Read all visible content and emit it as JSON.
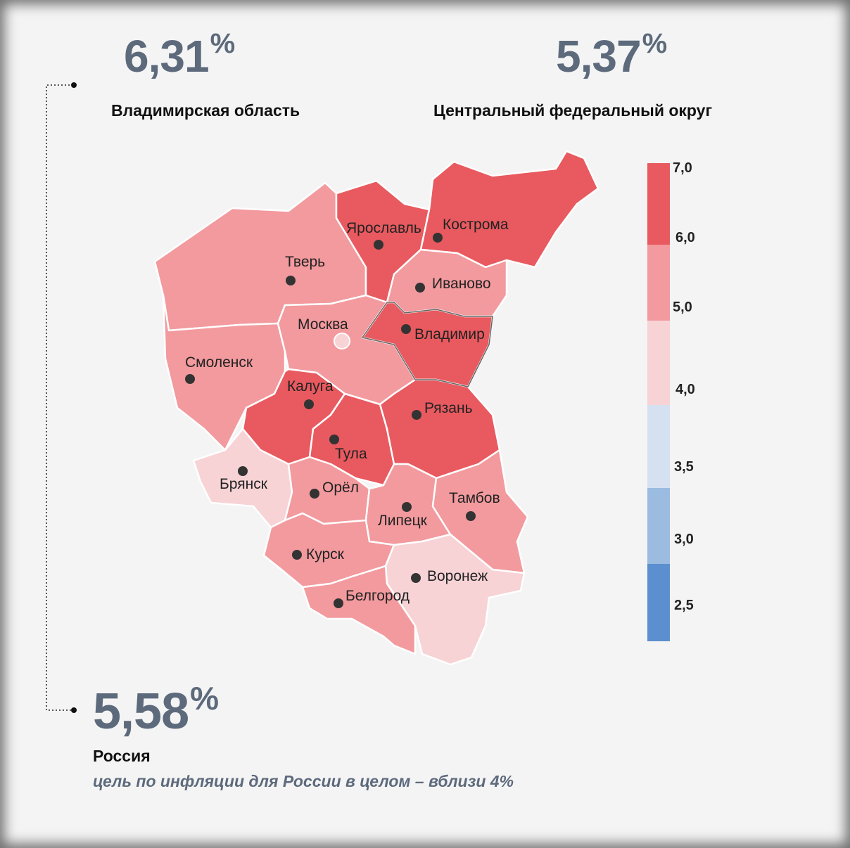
{
  "headline_left": {
    "value": "6,31",
    "unit": "%",
    "label": "Владимирская область"
  },
  "headline_right": {
    "value": "5,37",
    "unit": "%",
    "label": "Центральный федеральный округ"
  },
  "russia": {
    "value": "5,58",
    "unit": "%",
    "label": "Россия",
    "note": "цель по инфляции для России в целом – вблизи 4%"
  },
  "legend": {
    "ticks": [
      "7,0",
      "6,0",
      "5,0",
      "4,0",
      "3,5",
      "3,0",
      "2,5"
    ],
    "bands": [
      {
        "from": 6.0,
        "to": 7.0,
        "color": "#e85a5f"
      },
      {
        "from": 5.0,
        "to": 6.0,
        "color": "#f29a9e"
      },
      {
        "from": 4.0,
        "to": 5.0,
        "color": "#f7d3d6"
      },
      {
        "from": 3.5,
        "to": 4.0,
        "color": "#d5e1f0"
      },
      {
        "from": 3.0,
        "to": 3.5,
        "color": "#9bbbe0"
      },
      {
        "from": 2.5,
        "to": 3.0,
        "color": "#5b8fcf"
      }
    ]
  },
  "regions": [
    {
      "name": "Ярославль",
      "class": "high"
    },
    {
      "name": "Кострома",
      "class": "high"
    },
    {
      "name": "Тверь",
      "class": "mid"
    },
    {
      "name": "Иваново",
      "class": "mid"
    },
    {
      "name": "Москва",
      "class": "mid"
    },
    {
      "name": "Владимир",
      "class": "high"
    },
    {
      "name": "Смоленск",
      "class": "mid"
    },
    {
      "name": "Калуга",
      "class": "high"
    },
    {
      "name": "Рязань",
      "class": "high"
    },
    {
      "name": "Тула",
      "class": "high"
    },
    {
      "name": "Брянск",
      "class": "low"
    },
    {
      "name": "Орёл",
      "class": "mid"
    },
    {
      "name": "Липецк",
      "class": "mid"
    },
    {
      "name": "Тамбов",
      "class": "mid"
    },
    {
      "name": "Курск",
      "class": "mid"
    },
    {
      "name": "Воронеж",
      "class": "low"
    },
    {
      "name": "Белгород",
      "class": "mid"
    }
  ],
  "colors": {
    "high": "#e85a5f",
    "mid": "#f29a9e",
    "low": "#f7d3d6",
    "accent": "#5d6a7c"
  }
}
